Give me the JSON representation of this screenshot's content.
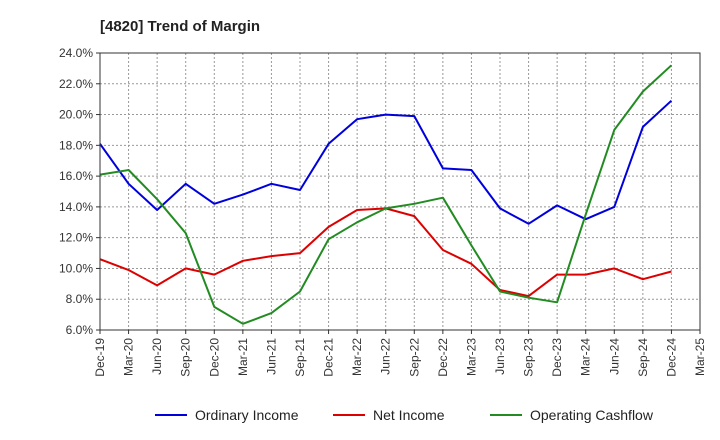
{
  "chart_data": {
    "type": "line",
    "title": "[4820]  Trend of Margin",
    "xlabel": "",
    "ylabel": "",
    "ylim": [
      6.0,
      24.0
    ],
    "y_ticks": [
      "6.0%",
      "8.0%",
      "10.0%",
      "12.0%",
      "14.0%",
      "16.0%",
      "18.0%",
      "20.0%",
      "22.0%",
      "24.0%"
    ],
    "x": [
      "Dec-19",
      "Mar-20",
      "Jun-20",
      "Sep-20",
      "Dec-20",
      "Mar-21",
      "Jun-21",
      "Sep-21",
      "Dec-21",
      "Mar-22",
      "Jun-22",
      "Sep-22",
      "Dec-22",
      "Mar-23",
      "Jun-23",
      "Sep-23",
      "Dec-23",
      "Mar-24",
      "Jun-24",
      "Sep-24",
      "Dec-24",
      "Mar-25"
    ],
    "grid": true,
    "legend_position": "bottom",
    "series": [
      {
        "name": "Ordinary Income",
        "color": "#0000dd",
        "values": [
          18.1,
          15.5,
          13.8,
          15.5,
          14.2,
          14.8,
          15.5,
          15.1,
          18.1,
          19.7,
          20.0,
          19.9,
          16.5,
          16.4,
          13.9,
          12.9,
          14.1,
          13.2,
          14.0,
          19.2,
          20.9,
          null
        ]
      },
      {
        "name": "Net Income",
        "color": "#dd0000",
        "values": [
          10.6,
          9.9,
          8.9,
          10.0,
          9.6,
          10.5,
          10.8,
          11.0,
          12.7,
          13.8,
          13.9,
          13.4,
          11.2,
          10.3,
          8.6,
          8.2,
          9.6,
          9.6,
          10.0,
          9.3,
          9.8,
          null
        ]
      },
      {
        "name": "Operating Cashflow",
        "color": "#228b22",
        "values": [
          16.1,
          16.4,
          14.5,
          12.3,
          7.5,
          6.4,
          7.1,
          8.5,
          11.9,
          13.0,
          13.9,
          14.2,
          14.6,
          11.5,
          8.5,
          8.1,
          7.8,
          13.5,
          19.0,
          21.5,
          23.2,
          null
        ]
      }
    ]
  }
}
